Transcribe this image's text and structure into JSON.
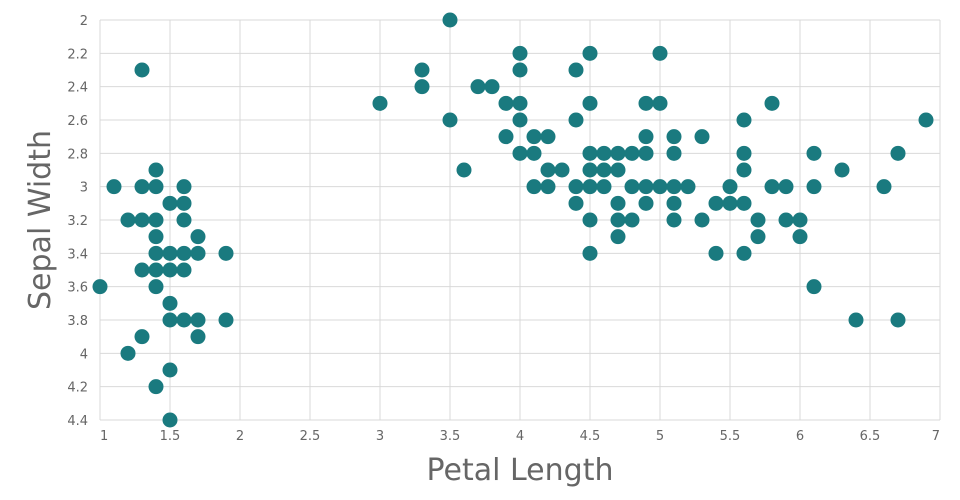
{
  "chart_data": {
    "type": "scatter",
    "xlabel": "Petal Length",
    "ylabel": "Sepal Width",
    "xlim": [
      1,
      7
    ],
    "ylim": [
      2,
      4.4
    ],
    "y_inverted": true,
    "grid": true,
    "marker_color": "#1a7a7f",
    "x_ticks": [
      "1",
      "1.5",
      "2",
      "2.5",
      "3",
      "3.5",
      "4",
      "4.5",
      "5",
      "5.5",
      "6",
      "6.5",
      "7"
    ],
    "y_ticks": [
      "2",
      "2.2",
      "2.4",
      "2.6",
      "2.8",
      "3",
      "3.2",
      "3.4",
      "3.6",
      "3.8",
      "4",
      "4.2",
      "4.4"
    ],
    "points": [
      [
        1.0,
        3.6
      ],
      [
        1.1,
        3.0
      ],
      [
        1.2,
        3.2
      ],
      [
        1.2,
        4.0
      ],
      [
        1.3,
        2.3
      ],
      [
        1.3,
        3.0
      ],
      [
        1.3,
        3.2
      ],
      [
        1.3,
        3.5
      ],
      [
        1.3,
        3.9
      ],
      [
        1.4,
        2.9
      ],
      [
        1.4,
        3.0
      ],
      [
        1.4,
        3.2
      ],
      [
        1.4,
        3.3
      ],
      [
        1.4,
        3.4
      ],
      [
        1.4,
        3.5
      ],
      [
        1.4,
        3.6
      ],
      [
        1.4,
        4.2
      ],
      [
        1.5,
        3.1
      ],
      [
        1.5,
        3.4
      ],
      [
        1.5,
        3.5
      ],
      [
        1.5,
        3.7
      ],
      [
        1.5,
        3.8
      ],
      [
        1.5,
        4.1
      ],
      [
        1.5,
        4.4
      ],
      [
        1.6,
        3.0
      ],
      [
        1.6,
        3.1
      ],
      [
        1.6,
        3.2
      ],
      [
        1.6,
        3.4
      ],
      [
        1.6,
        3.5
      ],
      [
        1.6,
        3.8
      ],
      [
        1.7,
        3.3
      ],
      [
        1.7,
        3.4
      ],
      [
        1.7,
        3.8
      ],
      [
        1.7,
        3.9
      ],
      [
        1.9,
        3.4
      ],
      [
        1.9,
        3.8
      ],
      [
        3.0,
        2.5
      ],
      [
        3.3,
        2.3
      ],
      [
        3.3,
        2.4
      ],
      [
        3.5,
        2.0
      ],
      [
        3.5,
        2.6
      ],
      [
        3.6,
        2.9
      ],
      [
        3.7,
        2.4
      ],
      [
        3.8,
        2.4
      ],
      [
        3.9,
        2.5
      ],
      [
        3.9,
        2.7
      ],
      [
        4.0,
        2.2
      ],
      [
        4.0,
        2.3
      ],
      [
        4.0,
        2.5
      ],
      [
        4.0,
        2.6
      ],
      [
        4.0,
        2.8
      ],
      [
        4.1,
        2.7
      ],
      [
        4.1,
        2.8
      ],
      [
        4.1,
        3.0
      ],
      [
        4.2,
        2.7
      ],
      [
        4.2,
        2.9
      ],
      [
        4.2,
        3.0
      ],
      [
        4.3,
        2.9
      ],
      [
        4.4,
        2.3
      ],
      [
        4.4,
        2.6
      ],
      [
        4.4,
        3.0
      ],
      [
        4.4,
        3.1
      ],
      [
        4.5,
        2.2
      ],
      [
        4.5,
        2.5
      ],
      [
        4.5,
        2.8
      ],
      [
        4.5,
        2.9
      ],
      [
        4.5,
        3.0
      ],
      [
        4.5,
        3.2
      ],
      [
        4.5,
        3.4
      ],
      [
        4.6,
        2.8
      ],
      [
        4.6,
        2.9
      ],
      [
        4.6,
        3.0
      ],
      [
        4.7,
        2.8
      ],
      [
        4.7,
        2.9
      ],
      [
        4.7,
        3.1
      ],
      [
        4.7,
        3.2
      ],
      [
        4.7,
        3.3
      ],
      [
        4.8,
        2.8
      ],
      [
        4.8,
        3.0
      ],
      [
        4.8,
        3.2
      ],
      [
        4.9,
        2.5
      ],
      [
        4.9,
        2.7
      ],
      [
        4.9,
        2.8
      ],
      [
        4.9,
        3.0
      ],
      [
        4.9,
        3.1
      ],
      [
        5.0,
        2.2
      ],
      [
        5.0,
        2.5
      ],
      [
        5.0,
        3.0
      ],
      [
        5.1,
        2.7
      ],
      [
        5.1,
        2.8
      ],
      [
        5.1,
        3.0
      ],
      [
        5.1,
        3.1
      ],
      [
        5.1,
        3.2
      ],
      [
        5.2,
        3.0
      ],
      [
        5.3,
        2.7
      ],
      [
        5.3,
        3.2
      ],
      [
        5.4,
        3.1
      ],
      [
        5.4,
        3.4
      ],
      [
        5.5,
        3.0
      ],
      [
        5.5,
        3.1
      ],
      [
        5.6,
        2.6
      ],
      [
        5.6,
        2.8
      ],
      [
        5.6,
        2.9
      ],
      [
        5.6,
        3.1
      ],
      [
        5.6,
        3.4
      ],
      [
        5.7,
        3.2
      ],
      [
        5.7,
        3.3
      ],
      [
        5.8,
        2.5
      ],
      [
        5.8,
        3.0
      ],
      [
        5.9,
        3.0
      ],
      [
        5.9,
        3.2
      ],
      [
        6.0,
        3.2
      ],
      [
        6.0,
        3.3
      ],
      [
        6.1,
        2.8
      ],
      [
        6.1,
        3.0
      ],
      [
        6.1,
        3.6
      ],
      [
        6.3,
        2.9
      ],
      [
        6.4,
        3.8
      ],
      [
        6.6,
        3.0
      ],
      [
        6.7,
        2.8
      ],
      [
        6.7,
        3.8
      ],
      [
        6.9,
        2.6
      ]
    ]
  }
}
